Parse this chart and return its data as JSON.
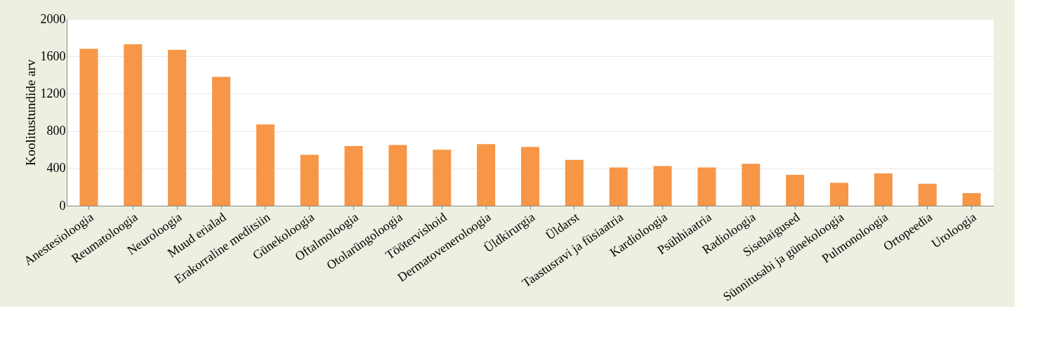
{
  "chart_data": {
    "type": "bar",
    "ylabel": "Koolitustundide arv",
    "categories": [
      "Anestesioloogia",
      "Reumatoloogia",
      "Neuroloogia",
      "Muud erialad",
      "Erakorraline meditsiin",
      "Günekoloogia",
      "Oftalmoloogia",
      "Otolarüngoloogia",
      "Töötervishoid",
      "Dermatoveneroloogia",
      "Üldkirurgia",
      "Üldarst",
      "Taastusravi ja füsiaatria",
      "Kardioloogia",
      "Psühhiaatria",
      "Radioloogia",
      "Sisehaigused",
      "Sünnitusabi ja günekoloogia",
      "Pulmonoloogia",
      "Ortopeedia",
      "Uroloogia"
    ],
    "values": [
      1680,
      1730,
      1670,
      1380,
      870,
      545,
      640,
      650,
      600,
      660,
      630,
      490,
      410,
      425,
      410,
      450,
      330,
      245,
      345,
      235,
      135
    ],
    "color": "#f79646",
    "ylim": [
      0,
      2000
    ],
    "yticks": [
      0,
      400,
      800,
      1200,
      1600,
      2000
    ],
    "grid": "y"
  }
}
